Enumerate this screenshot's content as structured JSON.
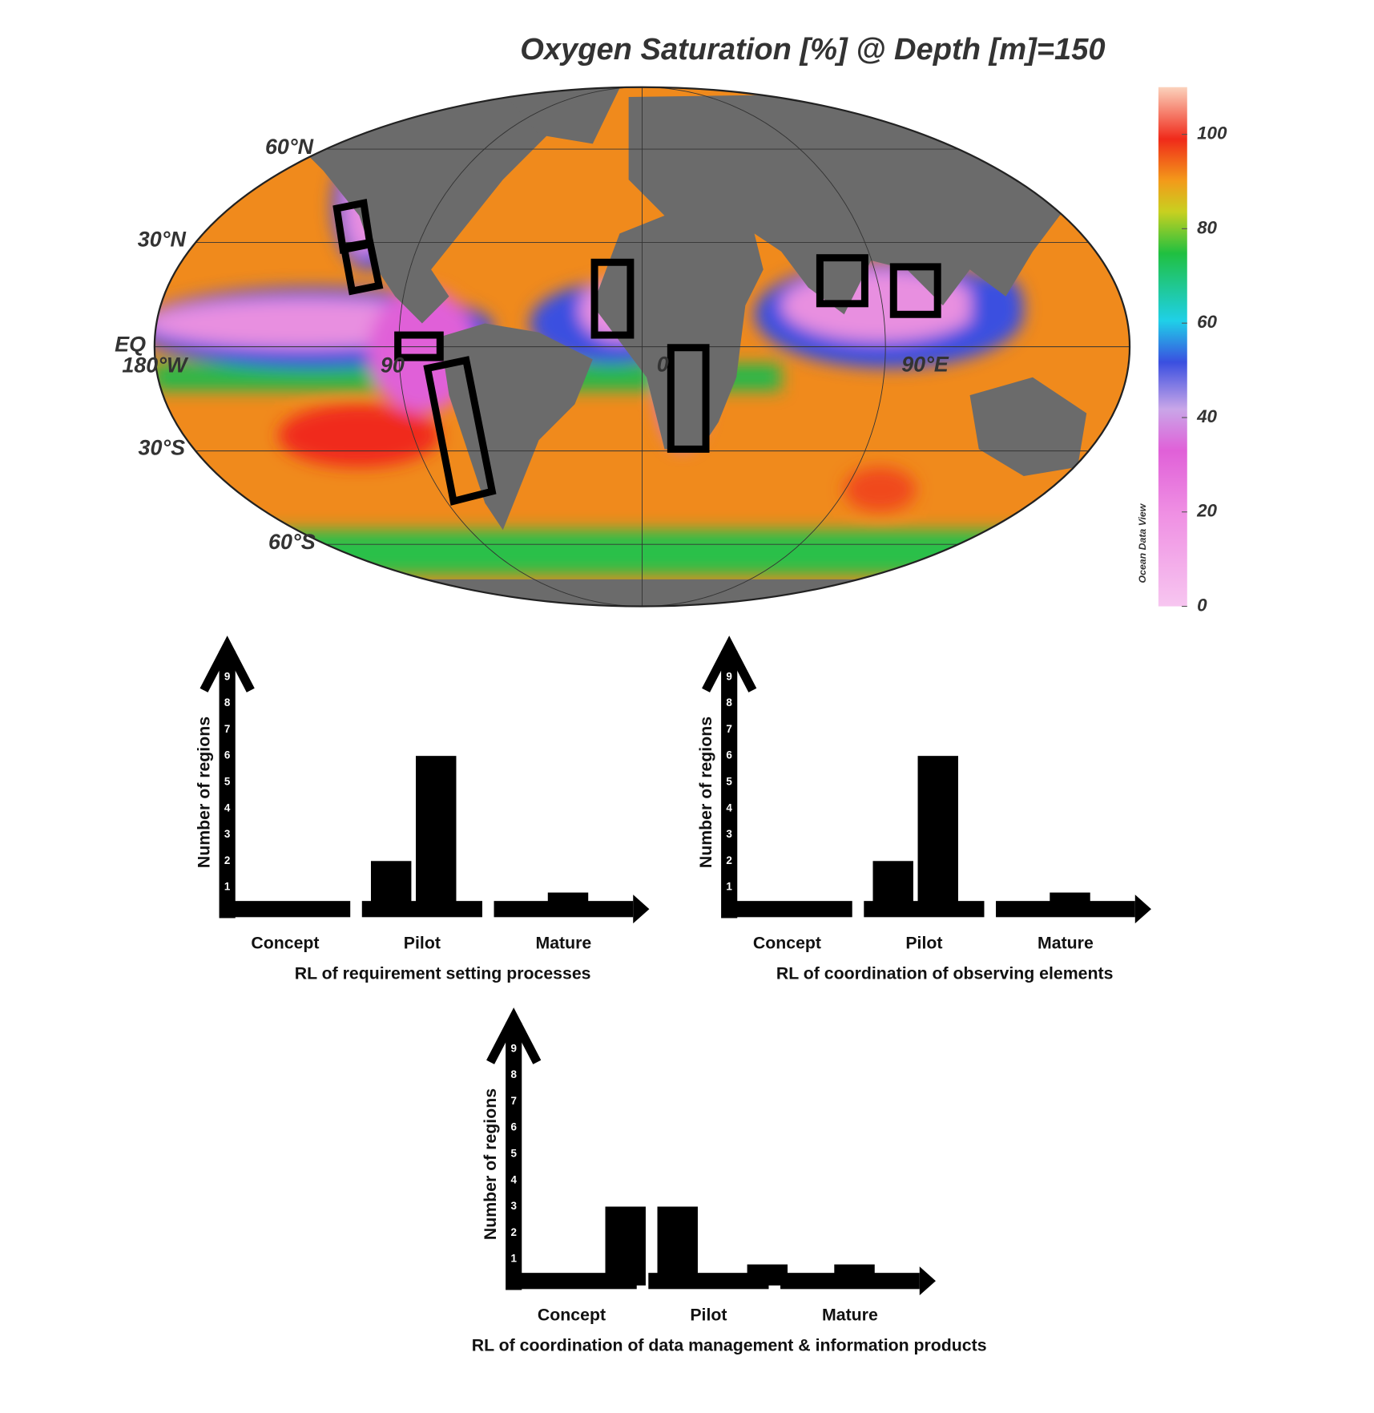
{
  "chart_data": [
    {
      "type": "map",
      "title": "Oxygen Saturation [%] @ Depth [m]=150",
      "lat_labels": [
        "60°N",
        "30°N",
        "EQ",
        "30°S",
        "60°S"
      ],
      "lon_labels": [
        "180°W",
        "90",
        "0",
        "90°E"
      ],
      "colorbar_label": "Ocean Data View",
      "clim": [
        0,
        110
      ],
      "cticks": [
        0,
        20,
        40,
        60,
        80,
        100
      ]
    },
    {
      "type": "bar",
      "ylabel": "Number of regions",
      "xlabel": "RL of requirement setting processes",
      "ylim": [
        0,
        10
      ],
      "yticks": [
        1,
        2,
        3,
        4,
        5,
        6,
        7,
        8,
        9
      ],
      "color": "#000000",
      "groups": [
        {
          "label": "Concept",
          "values": [
            0,
            0,
            0
          ]
        },
        {
          "label": "Pilot",
          "values": [
            2,
            6,
            0
          ]
        },
        {
          "label": "Mature",
          "values": [
            0,
            0.8,
            0
          ]
        }
      ]
    },
    {
      "type": "bar",
      "ylabel": "Number of regions",
      "xlabel": "RL of coordination of observing elements",
      "ylim": [
        0,
        10
      ],
      "yticks": [
        1,
        2,
        3,
        4,
        5,
        6,
        7,
        8,
        9
      ],
      "color": "#000000",
      "groups": [
        {
          "label": "Concept",
          "values": [
            0,
            0,
            0
          ]
        },
        {
          "label": "Pilot",
          "values": [
            2,
            6,
            0
          ]
        },
        {
          "label": "Mature",
          "values": [
            0,
            0.8,
            0
          ]
        }
      ]
    },
    {
      "type": "bar",
      "ylabel": "Number of regions",
      "xlabel": "RL of coordination of data management & information products",
      "ylim": [
        0,
        10
      ],
      "yticks": [
        1,
        2,
        3,
        4,
        5,
        6,
        7,
        8,
        9
      ],
      "color": "#000000",
      "groups": [
        {
          "label": "Concept",
          "values": [
            0,
            0,
            3
          ]
        },
        {
          "label": "Pilot",
          "values": [
            3,
            0,
            0.8
          ]
        },
        {
          "label": "Mature",
          "values": [
            0,
            0.8,
            0
          ]
        }
      ]
    }
  ]
}
